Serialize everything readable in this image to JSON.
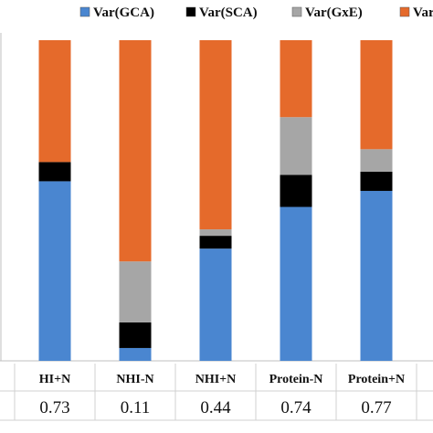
{
  "chart_data": {
    "type": "bar",
    "stacked": true,
    "normalized": true,
    "categories": [
      "HI+N",
      "NHI-N",
      "NHI+N",
      "Protein-N",
      "Protein+N"
    ],
    "series": [
      {
        "name": "Var(GCA)",
        "color": "#4a86d0",
        "values": [
          0.56,
          0.04,
          0.35,
          0.48,
          0.53
        ]
      },
      {
        "name": "Var(SCA)",
        "color": "#000000",
        "values": [
          0.06,
          0.08,
          0.04,
          0.1,
          0.06
        ]
      },
      {
        "name": "Var(GxE)",
        "color": "#a6a6a6",
        "values": [
          0.0,
          0.19,
          0.02,
          0.18,
          0.07
        ]
      },
      {
        "name": "Var(GxN)",
        "color": "#e56a2b",
        "values": [
          0.38,
          0.69,
          0.59,
          0.24,
          0.34
        ]
      }
    ],
    "ylim": [
      0,
      1
    ],
    "legend_position": "top",
    "table_row": [
      "0.73",
      "0.11",
      "0.44",
      "0.74",
      "0.77"
    ]
  }
}
